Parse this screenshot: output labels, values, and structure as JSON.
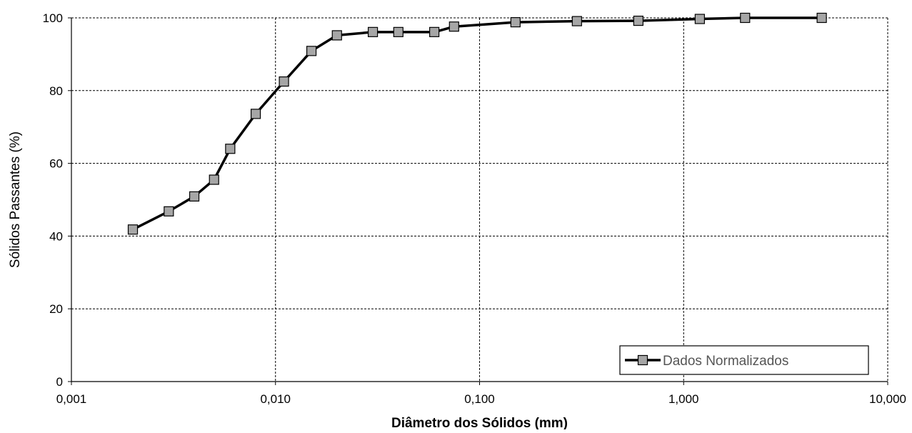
{
  "chart_data": {
    "type": "line",
    "title": "",
    "xlabel": "Diâmetro dos Sólidos (mm)",
    "ylabel": "Sólidos Passantes (%)",
    "xscale": "log",
    "xlim": [
      0.001,
      10
    ],
    "ylim": [
      0,
      100
    ],
    "xticks": [
      0.001,
      0.01,
      0.1,
      1,
      10
    ],
    "xtick_labels": [
      "0,001",
      "0,010",
      "0,100",
      "1,000",
      "10,000"
    ],
    "yticks": [
      0,
      20,
      40,
      60,
      80,
      100
    ],
    "ytick_labels": [
      "0",
      "20",
      "40",
      "60",
      "80",
      "100"
    ],
    "grid": true,
    "legend_position": "bottom-right",
    "series": [
      {
        "name": "Dados Normalizados",
        "color": "#000000",
        "marker_color": "#a6a6a6",
        "marker": "square",
        "x": [
          0.002,
          0.003,
          0.004,
          0.005,
          0.006,
          0.008,
          0.011,
          0.015,
          0.02,
          0.03,
          0.04,
          0.06,
          0.075,
          0.15,
          0.3,
          0.6,
          1.2,
          2.0,
          4.75
        ],
        "y": [
          41.8,
          46.8,
          50.9,
          55.5,
          64.0,
          73.6,
          82.5,
          90.9,
          95.2,
          96.1,
          96.1,
          96.1,
          97.6,
          98.8,
          99.1,
          99.2,
          99.7,
          100,
          100
        ]
      }
    ]
  }
}
